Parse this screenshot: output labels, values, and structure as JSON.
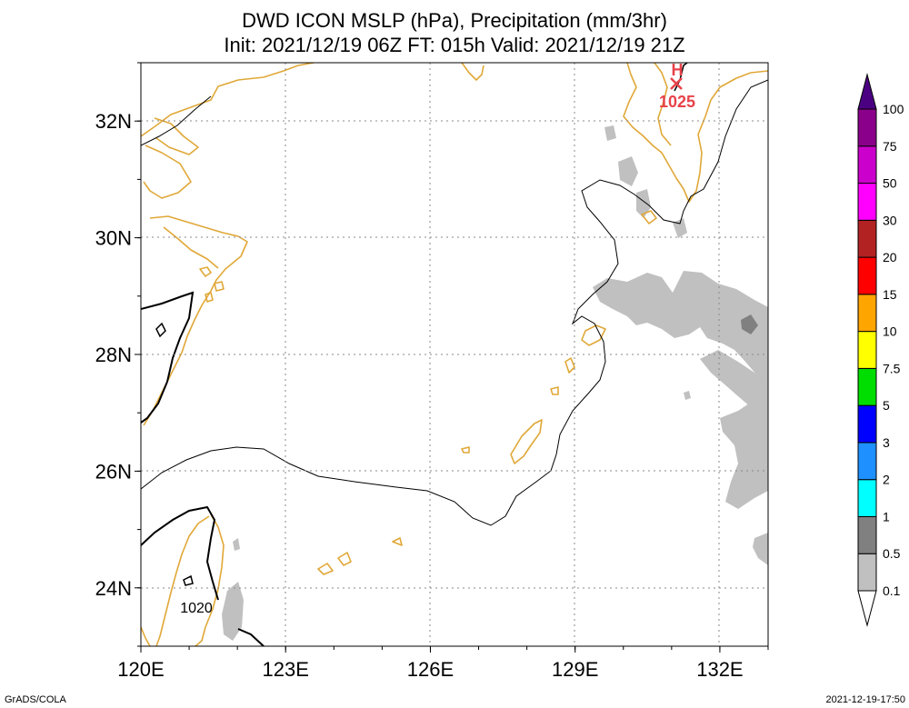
{
  "title_line1": "DWD ICON MSLP (hPa), Precipitation (mm/3hr)",
  "title_line2": "Init: 2021/12/19 06Z  FT: 015h  Valid: 2021/12/19 21Z",
  "footer_left": "GrADS/COLA",
  "footer_right": "2021-12-19-17:50",
  "map": {
    "lon_range": [
      120,
      133
    ],
    "lat_range": [
      23,
      33
    ],
    "lon_ticks": [
      120,
      123,
      126,
      129,
      132
    ],
    "lon_tick_labels": [
      "120E",
      "123E",
      "126E",
      "129E",
      "132E"
    ],
    "lat_ticks": [
      24,
      26,
      28,
      30,
      32
    ],
    "lat_tick_labels": [
      "24N",
      "26N",
      "28N",
      "30N",
      "32N"
    ],
    "grid": true
  },
  "pressure": {
    "high_symbol": "H",
    "high_value": "1025",
    "high_position": {
      "lon": 131.0,
      "lat": 32.7
    },
    "contour_label": "1020",
    "contour_label_position": {
      "lon": 121.0,
      "lat": 23.7
    }
  },
  "colorbar": {
    "levels": [
      "0.1",
      "0.5",
      "1",
      "2",
      "3",
      "5",
      "7.5",
      "10",
      "15",
      "20",
      "30",
      "50",
      "75",
      "100"
    ],
    "colors": [
      "#ffffff",
      "#c0c0c0",
      "#808080",
      "#00ffff",
      "#1e90ff",
      "#0000ff",
      "#00dd00",
      "#ffff00",
      "#ffa500",
      "#ff0000",
      "#b22222",
      "#ff00ff",
      "#cc00cc",
      "#8b008b",
      "#4b0082"
    ]
  },
  "colors": {
    "coastline": "#e0a838",
    "isobar": "#000000",
    "high_marker": "#e8424a",
    "precip_light": "#c0c0c0",
    "precip_medium": "#808080"
  }
}
